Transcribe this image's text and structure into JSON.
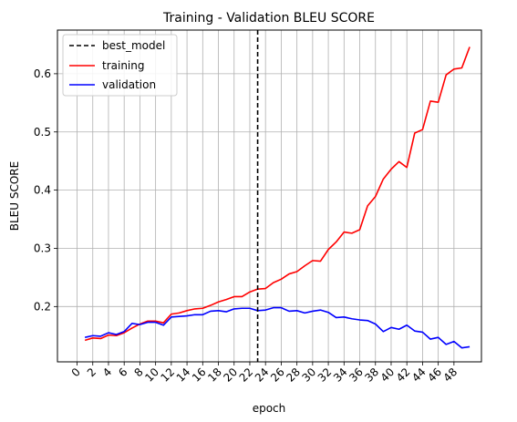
{
  "chart_data": {
    "type": "line",
    "title": "Training - Validation BLEU SCORE",
    "xlabel": "epoch",
    "ylabel": "BLEU SCORE",
    "xlim": [
      -2.5,
      51.5
    ],
    "ylim": [
      0.105,
      0.675
    ],
    "xticks": [
      0,
      2,
      4,
      6,
      8,
      10,
      12,
      14,
      16,
      18,
      20,
      22,
      24,
      26,
      28,
      30,
      32,
      34,
      36,
      38,
      40,
      42,
      44,
      46,
      48
    ],
    "yticks": [
      0.2,
      0.3,
      0.4,
      0.5,
      0.6
    ],
    "grid": true,
    "legend_position": "top-left",
    "best_model": {
      "name": "best_model",
      "x": 23,
      "color": "#000000",
      "style": "dashed"
    },
    "series": [
      {
        "name": "training",
        "color": "#ff0000",
        "x": [
          1,
          2,
          3,
          4,
          5,
          6,
          7,
          8,
          9,
          10,
          11,
          12,
          13,
          14,
          15,
          16,
          17,
          18,
          19,
          20,
          21,
          22,
          23,
          24,
          25,
          26,
          27,
          28,
          29,
          30,
          31,
          32,
          33,
          34,
          35,
          36,
          37,
          38,
          39,
          40,
          41,
          42,
          43,
          44,
          45,
          46,
          47,
          48,
          49,
          50
        ],
        "values": [
          0.142,
          0.146,
          0.145,
          0.151,
          0.15,
          0.155,
          0.163,
          0.17,
          0.175,
          0.175,
          0.172,
          0.187,
          0.189,
          0.193,
          0.196,
          0.197,
          0.202,
          0.208,
          0.212,
          0.217,
          0.217,
          0.225,
          0.23,
          0.231,
          0.241,
          0.247,
          0.256,
          0.26,
          0.27,
          0.279,
          0.278,
          0.298,
          0.311,
          0.328,
          0.326,
          0.332,
          0.373,
          0.389,
          0.419,
          0.436,
          0.449,
          0.439,
          0.498,
          0.504,
          0.553,
          0.551,
          0.598,
          0.608,
          0.61,
          0.646
        ]
      },
      {
        "name": "validation",
        "color": "#0000ff",
        "x": [
          1,
          2,
          3,
          4,
          5,
          6,
          7,
          8,
          9,
          10,
          11,
          12,
          13,
          14,
          15,
          16,
          17,
          18,
          19,
          20,
          21,
          22,
          23,
          24,
          25,
          26,
          27,
          28,
          29,
          30,
          31,
          32,
          33,
          34,
          35,
          36,
          37,
          38,
          39,
          40,
          41,
          42,
          43,
          44,
          45,
          46,
          47,
          48,
          49,
          50
        ],
        "values": [
          0.147,
          0.15,
          0.149,
          0.155,
          0.152,
          0.157,
          0.171,
          0.169,
          0.173,
          0.173,
          0.168,
          0.182,
          0.183,
          0.184,
          0.186,
          0.186,
          0.192,
          0.193,
          0.191,
          0.196,
          0.197,
          0.197,
          0.193,
          0.194,
          0.198,
          0.198,
          0.192,
          0.193,
          0.189,
          0.192,
          0.194,
          0.19,
          0.181,
          0.182,
          0.179,
          0.177,
          0.176,
          0.17,
          0.157,
          0.164,
          0.161,
          0.168,
          0.158,
          0.156,
          0.144,
          0.147,
          0.135,
          0.14,
          0.129,
          0.131
        ]
      }
    ]
  }
}
